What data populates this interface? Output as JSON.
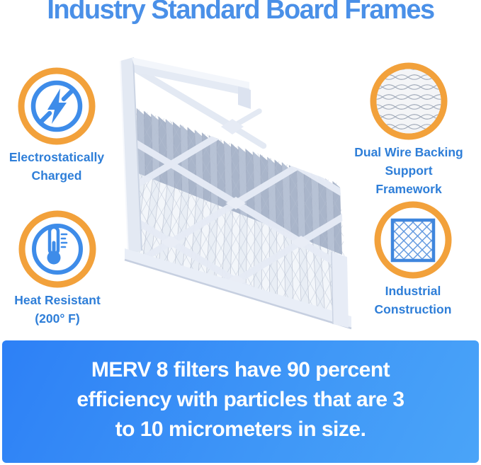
{
  "title": "Industry Standard Board Frames",
  "features": [
    {
      "icon": "lightning-bolt-icon",
      "lines": [
        "Electrostatically",
        "Charged"
      ]
    },
    {
      "icon": "wire-mesh-icon",
      "lines": [
        "Dual Wire Backing",
        "Support Framework"
      ]
    },
    {
      "icon": "thermometer-icon",
      "lines": [
        "Heat Resistant",
        "(200° F)"
      ]
    },
    {
      "icon": "mesh-square-icon",
      "lines": [
        "Industrial",
        "Construction"
      ]
    }
  ],
  "banner": {
    "lines": [
      "MERV 8 filters have 90 percent",
      "efficiency with particles that are 3",
      "to 10 micrometers in size."
    ]
  },
  "colors": {
    "title_blue": "#4a90e8",
    "label_blue": "#2e7ed8",
    "icon_blue": "#3e8ce9",
    "ring_orange": "#f2a13b",
    "banner_gradient_start": "#2d80f6",
    "banner_gradient_end": "#4aa4f8",
    "banner_text": "#ffffff"
  }
}
